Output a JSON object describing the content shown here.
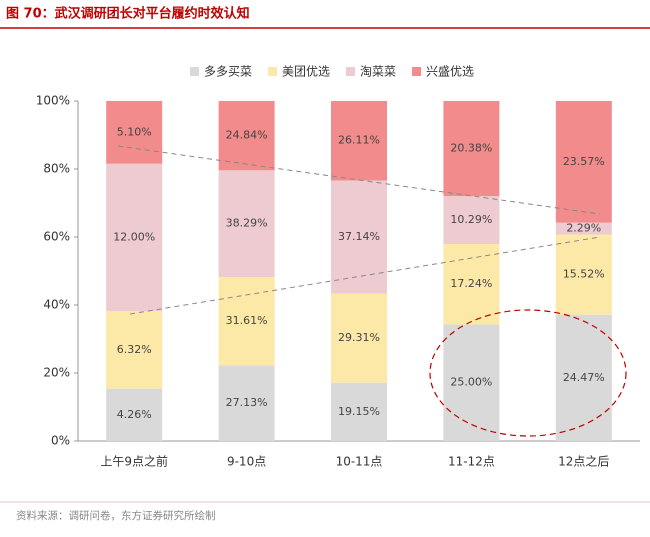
{
  "chart_data": {
    "type": "bar",
    "stack": "percent",
    "title": "图 70：武汉调研团长对平台履约时效认知",
    "source": "资料来源：调研问卷，东方证券研究所绘制",
    "categories": [
      "上午9点之前",
      "9-10点",
      "10-11点",
      "11-12点",
      "12点之后"
    ],
    "series": [
      {
        "name": "多多买菜",
        "color": "#d9d9d9",
        "values": [
          4.26,
          27.13,
          19.15,
          25.0,
          24.47
        ],
        "value_labels": [
          "4.26%",
          "27.13%",
          "19.15%",
          "25.00%",
          "24.47%"
        ]
      },
      {
        "name": "美团优选",
        "color": "#fde9a7",
        "values": [
          6.32,
          31.61,
          29.31,
          17.24,
          15.52
        ],
        "value_labels": [
          "6.32%",
          "31.61%",
          "29.31%",
          "17.24%",
          "15.52%"
        ]
      },
      {
        "name": "淘菜菜",
        "color": "#eecbd1",
        "values": [
          12.0,
          38.29,
          37.14,
          10.29,
          2.29
        ],
        "value_labels": [
          "12.00%",
          "38.29%",
          "37.14%",
          "10.29%",
          "2.29%"
        ]
      },
      {
        "name": "兴盛优选",
        "color": "#f28b8b",
        "values": [
          5.1,
          24.84,
          26.11,
          20.38,
          23.57
        ],
        "value_labels": [
          "5.10%",
          "24.84%",
          "26.11%",
          "20.38%",
          "23.57%"
        ]
      }
    ],
    "ylim": [
      0,
      100
    ],
    "yticks": [
      {
        "value": 0,
        "label": "0%"
      },
      {
        "value": 20,
        "label": "20%"
      },
      {
        "value": 40,
        "label": "40%"
      },
      {
        "value": 60,
        "label": "60%"
      },
      {
        "value": 80,
        "label": "80%"
      },
      {
        "value": 100,
        "label": "100%"
      }
    ],
    "legend": "top"
  }
}
